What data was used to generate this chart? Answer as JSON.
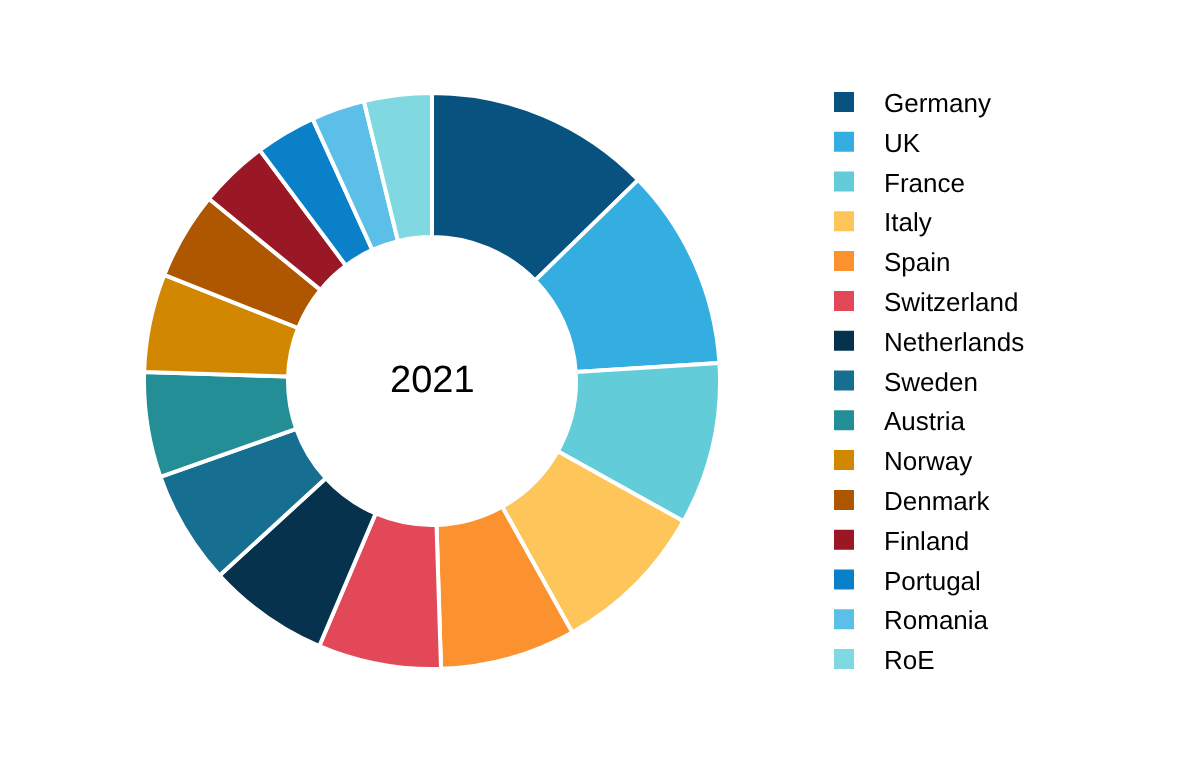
{
  "chart_data": {
    "type": "donut",
    "title": "2021",
    "categories": [
      "Germany",
      "UK",
      "France",
      "Italy",
      "Spain",
      "Switzerland",
      "Netherlands",
      "Sweden",
      "Austria",
      "Norway",
      "Denmark",
      "Finland",
      "Portugal",
      "Romania",
      "RoE"
    ],
    "values": [
      12.7,
      11.3,
      9.1,
      8.8,
      7.6,
      6.9,
      6.8,
      6.4,
      5.9,
      5.5,
      4.9,
      3.9,
      3.4,
      3.0,
      3.8
    ],
    "colors": [
      "#08527f",
      "#34aee0",
      "#62cdd8",
      "#fec65a",
      "#fb912f",
      "#e24858",
      "#07324d",
      "#166f91",
      "#238e95",
      "#d18700",
      "#ae5700",
      "#9a1825",
      "#0a80c8",
      "#5bbfe7",
      "#80d8e1"
    ],
    "legend": "right"
  }
}
